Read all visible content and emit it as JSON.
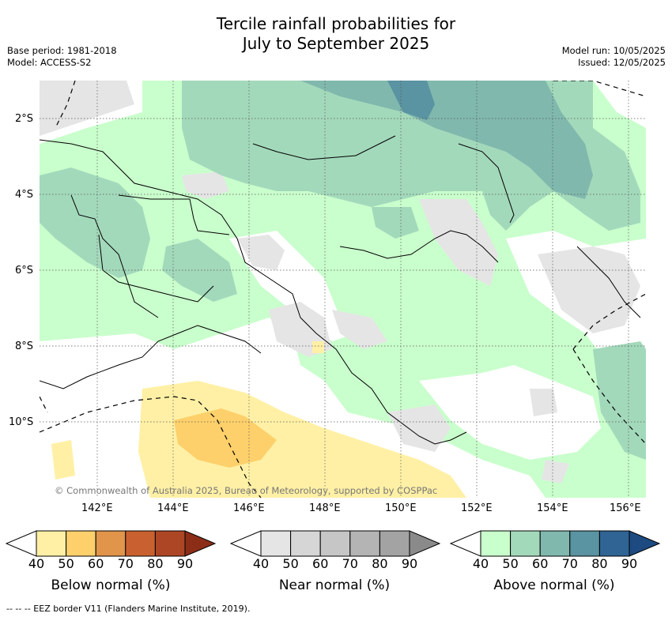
{
  "header": {
    "title_line1": "Tercile rainfall probabilities for",
    "title_line2": "July to September 2025",
    "base_period": "Base period: 1981-2018",
    "model": "Model: ACCESS-S2",
    "model_run": "Model run: 10/05/2025",
    "issued": "Issued: 12/05/2025"
  },
  "map": {
    "copyright": "© Commonwealth of Australia 2025, Bureau of Meteorology, supported by COSPPac",
    "lat_labels": [
      "2°S",
      "4°S",
      "6°S",
      "8°S",
      "10°S"
    ],
    "lon_labels": [
      "142°E",
      "144°E",
      "146°E",
      "148°E",
      "150°E",
      "152°E",
      "154°E",
      "156°E"
    ]
  },
  "legends": [
    {
      "title": "Below normal (%)",
      "ticks": [
        "40",
        "50",
        "60",
        "70",
        "80",
        "90"
      ],
      "colors": [
        "#fff0a5",
        "#fdd06b",
        "#e0954a",
        "#c8612f",
        "#ad4625",
        "#8c2d18"
      ]
    },
    {
      "title": "Near normal (%)",
      "ticks": [
        "40",
        "50",
        "60",
        "70",
        "80",
        "90"
      ],
      "colors": [
        "#e5e5e5",
        "#d6d6d6",
        "#c6c6c6",
        "#b4b4b4",
        "#a3a3a3",
        "#8a8a8a"
      ]
    },
    {
      "title": "Above normal (%)",
      "ticks": [
        "40",
        "50",
        "60",
        "70",
        "80",
        "90"
      ],
      "colors": [
        "#c9ffcc",
        "#a3d9bb",
        "#80b8ad",
        "#5a93a1",
        "#2f6494",
        "#1d4a80"
      ]
    }
  ],
  "footer": {
    "eez_note": "-- -- -- EEZ border V11 (Flanders Marine Institute, 2019)."
  }
}
